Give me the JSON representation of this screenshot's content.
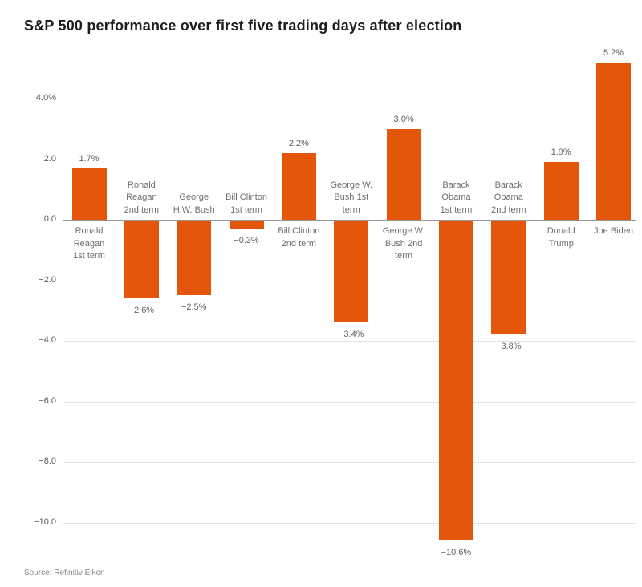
{
  "page": {
    "title": "S&P 500 performance over first five trading days after election",
    "source": "Source: Refinitiv Eikon"
  },
  "colors": {
    "bar": "#e4570b",
    "gridline": "#e2e2e2",
    "zero_line": "#979797",
    "title_text": "#1d1d1d",
    "tick_text": "#5a5a5a",
    "value_text": "#636363",
    "category_text": "#6e6e6e",
    "source_text": "#8a8a8a",
    "background": "#ffffff"
  },
  "chart_data": {
    "type": "bar",
    "title": "S&P 500 performance over first five trading days after election",
    "xlabel": "",
    "ylabel": "",
    "unit": "%",
    "grid": true,
    "legend": false,
    "ylim": [
      -11.5,
      5.8
    ],
    "yticks": [
      {
        "value": 4.0,
        "label": "4.0%"
      },
      {
        "value": 2.0,
        "label": "2.0"
      },
      {
        "value": 0.0,
        "label": "0.0"
      },
      {
        "value": -2.0,
        "label": "−2.0"
      },
      {
        "value": -4.0,
        "label": "−4.0"
      },
      {
        "value": -6.0,
        "label": "−6.0"
      },
      {
        "value": -8.0,
        "label": "−8.0"
      },
      {
        "value": -10.0,
        "label": "−10.0"
      }
    ],
    "categories": [
      "Ronald Reagan 1st term",
      "Ronald Reagan 2nd term",
      "George H.W. Bush",
      "Bill Clinton 1st term",
      "Bill Clinton 2nd term",
      "George W. Bush 1st term",
      "George W. Bush 2nd term",
      "Barack Obama 1st term",
      "Barack Obama 2nd term",
      "Donald Trump",
      "Joe Biden"
    ],
    "values": [
      1.7,
      -2.6,
      -2.5,
      -0.3,
      2.2,
      -3.4,
      3.0,
      -10.6,
      -3.8,
      1.9,
      5.2
    ],
    "bars": [
      {
        "category": "Ronald Reagan 1st term",
        "label_lines": [
          "Ronald",
          "Reagan",
          "1st term"
        ],
        "value": 1.7,
        "value_label": "1.7%"
      },
      {
        "category": "Ronald Reagan 2nd term",
        "label_lines": [
          "Ronald",
          "Reagan",
          "2nd term"
        ],
        "value": -2.6,
        "value_label": "−2.6%"
      },
      {
        "category": "George H.W. Bush",
        "label_lines": [
          "George",
          "H.W. Bush"
        ],
        "value": -2.5,
        "value_label": "−2.5%"
      },
      {
        "category": "Bill Clinton 1st term",
        "label_lines": [
          "Bill Clinton",
          "1st term"
        ],
        "value": -0.3,
        "value_label": "−0.3%"
      },
      {
        "category": "Bill Clinton 2nd term",
        "label_lines": [
          "Bill Clinton",
          "2nd term"
        ],
        "value": 2.2,
        "value_label": "2.2%"
      },
      {
        "category": "George W. Bush 1st term",
        "label_lines": [
          "George W.",
          "Bush 1st",
          "term"
        ],
        "value": -3.4,
        "value_label": "−3.4%"
      },
      {
        "category": "George W. Bush 2nd term",
        "label_lines": [
          "George W.",
          "Bush 2nd",
          "term"
        ],
        "value": 3.0,
        "value_label": "3.0%"
      },
      {
        "category": "Barack Obama 1st term",
        "label_lines": [
          "Barack",
          "Obama",
          "1st term"
        ],
        "value": -10.6,
        "value_label": "−10.6%"
      },
      {
        "category": "Barack Obama 2nd term",
        "label_lines": [
          "Barack",
          "Obama",
          "2nd term"
        ],
        "value": -3.8,
        "value_label": "−3.8%"
      },
      {
        "category": "Donald Trump",
        "label_lines": [
          "Donald",
          "Trump"
        ],
        "value": 1.9,
        "value_label": "1.9%"
      },
      {
        "category": "Joe Biden",
        "label_lines": [
          "Joe Biden"
        ],
        "value": 5.2,
        "value_label": "5.2%"
      }
    ]
  }
}
